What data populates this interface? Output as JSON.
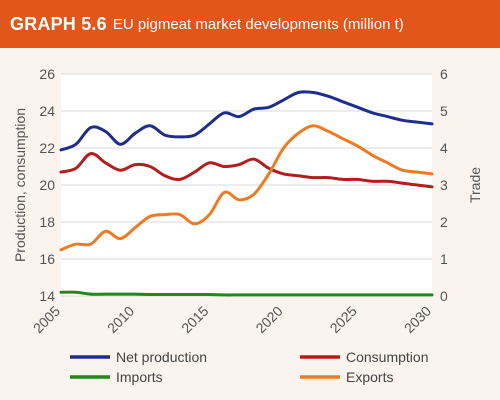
{
  "header": {
    "label": "GRAPH 5.6",
    "title": "EU pigmeat market developments (million t)"
  },
  "chart_data": {
    "type": "line",
    "title": "EU pigmeat market developments (million t)",
    "ylabel": "Production, consumption",
    "y2label": "Trade",
    "ylim": [
      14,
      26
    ],
    "y2lim": [
      0,
      6
    ],
    "xlim": [
      2005,
      2030
    ],
    "x_ticks": [
      2005,
      2010,
      2015,
      2020,
      2025,
      2030
    ],
    "y_ticks": [
      14,
      16,
      18,
      20,
      22,
      24,
      26
    ],
    "y2_ticks": [
      0,
      1,
      2,
      3,
      4,
      5,
      6
    ],
    "grid": "horizontal",
    "legend": "bottom",
    "series": [
      {
        "name": "Net production",
        "axis": "left",
        "color": "#1f2e8c",
        "x": [
          2005,
          2006,
          2007,
          2008,
          2009,
          2010,
          2011,
          2012,
          2013,
          2014,
          2015,
          2016,
          2017,
          2018,
          2019,
          2020,
          2021,
          2022,
          2023,
          2024,
          2025,
          2026,
          2027,
          2028,
          2029,
          2030
        ],
        "values": [
          21.9,
          22.2,
          23.1,
          22.9,
          22.2,
          22.8,
          23.2,
          22.7,
          22.6,
          22.7,
          23.3,
          23.9,
          23.7,
          24.1,
          24.2,
          24.6,
          25.0,
          25.0,
          24.8,
          24.5,
          24.2,
          23.9,
          23.7,
          23.5,
          23.4,
          23.3
        ]
      },
      {
        "name": "Consumption",
        "axis": "left",
        "color": "#b31d1d",
        "x": [
          2005,
          2006,
          2007,
          2008,
          2009,
          2010,
          2011,
          2012,
          2013,
          2014,
          2015,
          2016,
          2017,
          2018,
          2019,
          2020,
          2021,
          2022,
          2023,
          2024,
          2025,
          2026,
          2027,
          2028,
          2029,
          2030
        ],
        "values": [
          20.7,
          20.9,
          21.7,
          21.2,
          20.8,
          21.1,
          21.0,
          20.5,
          20.3,
          20.7,
          21.2,
          21.0,
          21.1,
          21.4,
          20.9,
          20.6,
          20.5,
          20.4,
          20.4,
          20.3,
          20.3,
          20.2,
          20.2,
          20.1,
          20.0,
          19.9
        ]
      },
      {
        "name": "Imports",
        "axis": "right",
        "color": "#1e8a1e",
        "x": [
          2005,
          2006,
          2007,
          2008,
          2009,
          2010,
          2011,
          2012,
          2013,
          2014,
          2015,
          2016,
          2017,
          2018,
          2019,
          2020,
          2021,
          2022,
          2023,
          2024,
          2025,
          2026,
          2027,
          2028,
          2029,
          2030
        ],
        "values": [
          0.1,
          0.1,
          0.05,
          0.05,
          0.05,
          0.05,
          0.04,
          0.04,
          0.04,
          0.04,
          0.04,
          0.03,
          0.03,
          0.03,
          0.03,
          0.03,
          0.03,
          0.03,
          0.03,
          0.03,
          0.03,
          0.03,
          0.03,
          0.03,
          0.03,
          0.03
        ]
      },
      {
        "name": "Exports",
        "axis": "right",
        "color": "#ee7a22",
        "x": [
          2005,
          2006,
          2007,
          2008,
          2009,
          2010,
          2011,
          2012,
          2013,
          2014,
          2015,
          2016,
          2017,
          2018,
          2019,
          2020,
          2021,
          2022,
          2023,
          2024,
          2025,
          2026,
          2027,
          2028,
          2029,
          2030
        ],
        "values": [
          1.25,
          1.4,
          1.4,
          1.75,
          1.55,
          1.85,
          2.15,
          2.2,
          2.2,
          1.95,
          2.2,
          2.8,
          2.6,
          2.75,
          3.3,
          4.0,
          4.4,
          4.6,
          4.45,
          4.25,
          4.05,
          3.8,
          3.6,
          3.4,
          3.35,
          3.3
        ]
      }
    ]
  }
}
